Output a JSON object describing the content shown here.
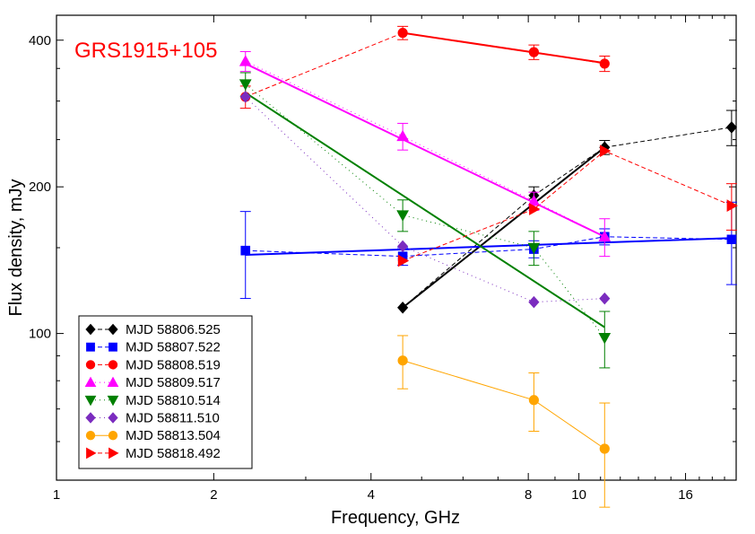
{
  "chart_data": {
    "type": "scatter",
    "title": "GRS1915+105",
    "title_color": "#ff0000",
    "xlabel": "Frequency, GHz",
    "ylabel": "Flux density, mJy",
    "x_scale": "log",
    "y_scale": "log",
    "xlim": [
      1,
      20
    ],
    "ylim": [
      50,
      450
    ],
    "xticks": [
      1,
      2,
      4,
      8,
      10,
      16
    ],
    "yticks": [
      100,
      200,
      400
    ],
    "grid": false,
    "legend_position": "bottom-left",
    "series": [
      {
        "name": "MJD 58806.525",
        "color": "#000000",
        "marker": "diamond",
        "line": "dashed",
        "points": [
          {
            "x": 4.6,
            "y": 113,
            "err": 0
          },
          {
            "x": 8.2,
            "y": 192,
            "err": 8
          },
          {
            "x": 11.2,
            "y": 241,
            "err": 8
          },
          {
            "x": 19.6,
            "y": 265,
            "err": 22
          }
        ],
        "fit": [
          [
            4.6,
            113
          ],
          [
            11.2,
            241
          ]
        ]
      },
      {
        "name": "MJD 58807.522",
        "color": "#0000ff",
        "marker": "square",
        "line": "dashed",
        "points": [
          {
            "x": 2.3,
            "y": 148,
            "err": 30
          },
          {
            "x": 4.6,
            "y": 144,
            "err": 6
          },
          {
            "x": 8.2,
            "y": 149,
            "err": 6
          },
          {
            "x": 11.2,
            "y": 158,
            "err": 6
          },
          {
            "x": 19.6,
            "y": 156,
            "err": 30
          }
        ],
        "fit": [
          [
            2.3,
            145
          ],
          [
            19.6,
            157
          ]
        ]
      },
      {
        "name": "MJD 58808.519",
        "color": "#ff0000",
        "marker": "circle",
        "line": "dashed",
        "points": [
          {
            "x": 2.3,
            "y": 306,
            "err": 16
          },
          {
            "x": 4.6,
            "y": 414,
            "err": 13
          },
          {
            "x": 8.2,
            "y": 378,
            "err": 13
          },
          {
            "x": 11.2,
            "y": 358,
            "err": 13
          }
        ],
        "fit": [
          [
            4.6,
            414
          ],
          [
            11.2,
            359
          ]
        ]
      },
      {
        "name": "MJD 58809.517",
        "color": "#ff00ff",
        "marker": "triangle-up",
        "line": "dotted",
        "points": [
          {
            "x": 2.3,
            "y": 362,
            "err": 17
          },
          {
            "x": 4.6,
            "y": 254,
            "err": 16
          },
          {
            "x": 8.2,
            "y": 187,
            "err": 8
          },
          {
            "x": 11.2,
            "y": 158,
            "err": 14
          }
        ],
        "fit": [
          [
            2.3,
            358
          ],
          [
            11.2,
            158
          ]
        ]
      },
      {
        "name": "MJD 58810.514",
        "color": "#008000",
        "marker": "triangle-down",
        "line": "dotted",
        "points": [
          {
            "x": 2.3,
            "y": 325,
            "err": 18
          },
          {
            "x": 4.6,
            "y": 175,
            "err": 13
          },
          {
            "x": 8.2,
            "y": 150,
            "err": 12
          },
          {
            "x": 11.2,
            "y": 98,
            "err": 13
          }
        ],
        "fit": [
          [
            2.3,
            312
          ],
          [
            11.2,
            103
          ]
        ]
      },
      {
        "name": "MJD 58811.510",
        "color": "#7b2cbf",
        "marker": "diamond",
        "line": "dotted",
        "points": [
          {
            "x": 2.3,
            "y": 306,
            "err": 0
          },
          {
            "x": 4.6,
            "y": 151,
            "err": 0
          },
          {
            "x": 8.2,
            "y": 116,
            "err": 0
          },
          {
            "x": 11.2,
            "y": 118,
            "err": 0
          }
        ],
        "fit": []
      },
      {
        "name": "MJD 58813.504",
        "color": "#ffa500",
        "marker": "circle",
        "line": "solid",
        "points": [
          {
            "x": 4.6,
            "y": 88,
            "err": 11
          },
          {
            "x": 8.2,
            "y": 73,
            "err": 10
          },
          {
            "x": 11.2,
            "y": 58,
            "err": 14
          }
        ],
        "fit": []
      },
      {
        "name": "MJD 58818.492",
        "color": "#ff0000",
        "marker": "triangle-right",
        "line": "dashed",
        "points": [
          {
            "x": 4.6,
            "y": 141,
            "err": 0
          },
          {
            "x": 8.2,
            "y": 180,
            "err": 0
          },
          {
            "x": 11.2,
            "y": 237,
            "err": 0
          },
          {
            "x": 19.6,
            "y": 183,
            "err": 20
          }
        ],
        "fit": []
      }
    ]
  }
}
